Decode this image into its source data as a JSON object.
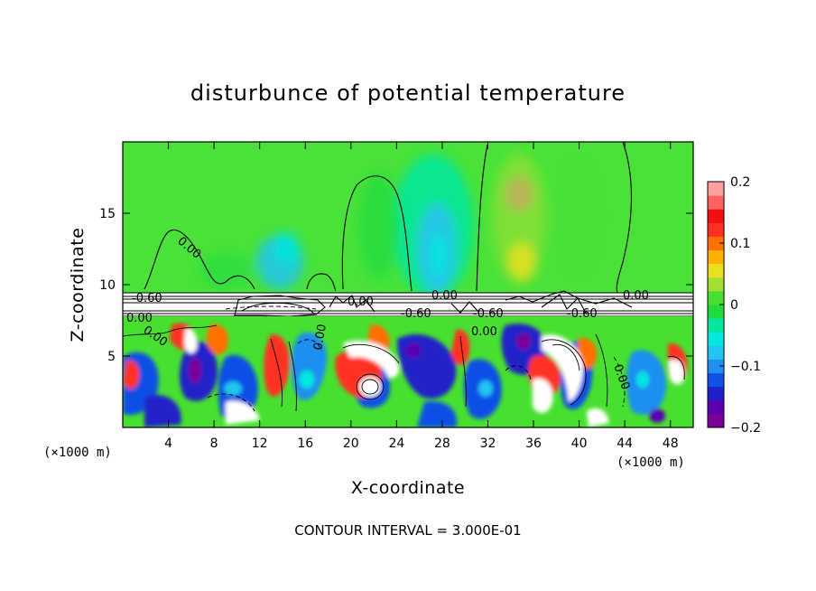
{
  "chart_data": {
    "type": "heatmap",
    "title": "disturbunce of potential temperature",
    "xlabel": "X-coordinate",
    "ylabel": "Z-coordinate",
    "x_unit": "(×1000 m)",
    "z_unit": "(×1000 m)",
    "xlim": [
      0,
      50
    ],
    "ylim": [
      0,
      20
    ],
    "x_ticks": [
      4,
      8,
      12,
      16,
      20,
      24,
      28,
      32,
      36,
      40,
      44,
      48
    ],
    "x_tick_labels": [
      "4",
      "8",
      "12",
      "16",
      "20",
      "24",
      "28",
      "32",
      "36",
      "40",
      "44",
      "48"
    ],
    "y_ticks": [
      5,
      10,
      15
    ],
    "y_tick_labels": [
      "5",
      "10",
      "15"
    ],
    "colorbar": {
      "min": -0.2,
      "max": 0.2,
      "ticks": [
        0.2,
        0.1,
        0,
        -0.1,
        -0.2
      ],
      "tick_labels": [
        "0.2",
        "0.1",
        "0",
        "−0.1",
        "−0.2"
      ],
      "colors": [
        "#7a0099",
        "#5a00b0",
        "#2020c8",
        "#1050e6",
        "#1f8ff0",
        "#22c4f0",
        "#00e8e0",
        "#00e8a0",
        "#20dc40",
        "#48e030",
        "#a0e030",
        "#e8e020",
        "#ffb000",
        "#ff7000",
        "#ff3020",
        "#f01010",
        "#ff6060",
        "#ffa0a0"
      ]
    },
    "contour_labels": [
      "0.00",
      "0.00",
      "0.00",
      "0.00",
      "0.00",
      "0.00",
      "0.00",
      "0.00",
      "0.00",
      "-0.60",
      "-0.60",
      "-0.60",
      "-0.60"
    ],
    "contour_interval_text": "CONTOUR INTERVAL = 3.000E-01"
  }
}
